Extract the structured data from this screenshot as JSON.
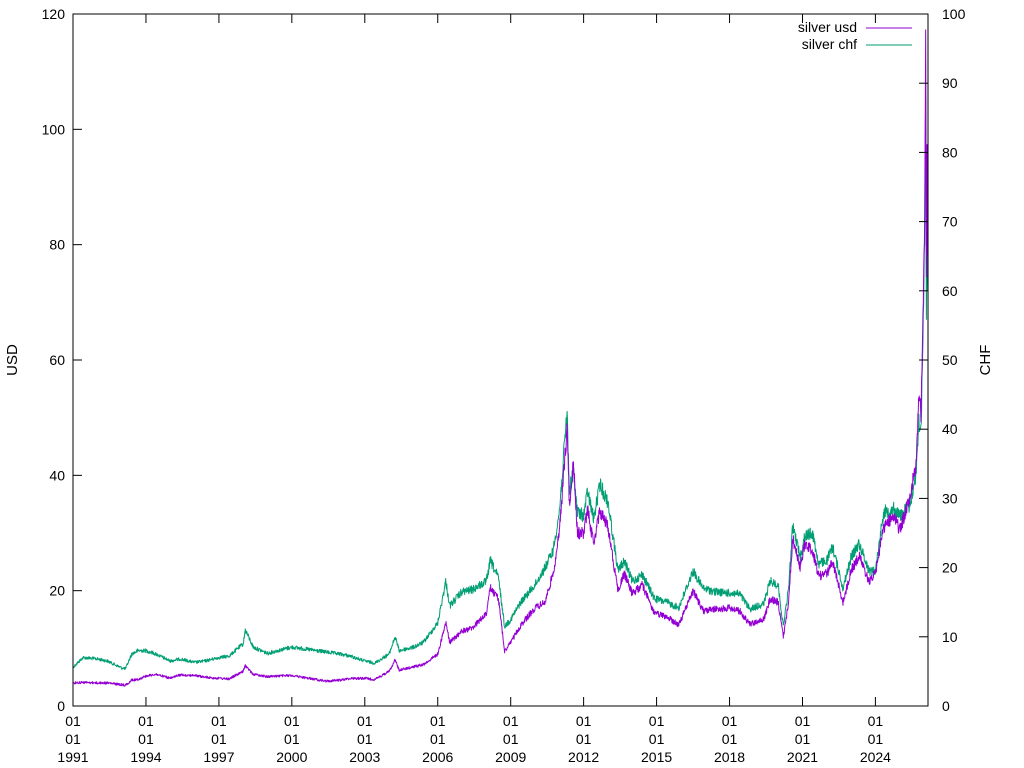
{
  "chart_data": {
    "type": "line",
    "title": "",
    "xlabel": "",
    "ylabel": "USD",
    "y2label": "CHF",
    "xlim": [
      "1991-01-01",
      "2026-03-01"
    ],
    "ylim": [
      0,
      120
    ],
    "y2lim": [
      0,
      100
    ],
    "grid": false,
    "legend_position": "top-right",
    "x_ticks": [
      {
        "value": "1991-01-01",
        "lines": [
          "01",
          "01",
          "1991"
        ]
      },
      {
        "value": "1994-01-01",
        "lines": [
          "01",
          "01",
          "1994"
        ]
      },
      {
        "value": "1997-01-01",
        "lines": [
          "01",
          "01",
          "1997"
        ]
      },
      {
        "value": "2000-01-01",
        "lines": [
          "01",
          "01",
          "2000"
        ]
      },
      {
        "value": "2003-01-01",
        "lines": [
          "01",
          "01",
          "2003"
        ]
      },
      {
        "value": "2006-01-01",
        "lines": [
          "01",
          "01",
          "2006"
        ]
      },
      {
        "value": "2009-01-01",
        "lines": [
          "01",
          "01",
          "2009"
        ]
      },
      {
        "value": "2012-01-01",
        "lines": [
          "01",
          "01",
          "2012"
        ]
      },
      {
        "value": "2015-01-01",
        "lines": [
          "01",
          "01",
          "2015"
        ]
      },
      {
        "value": "2018-01-01",
        "lines": [
          "01",
          "01",
          "2018"
        ]
      },
      {
        "value": "2021-01-01",
        "lines": [
          "01",
          "01",
          "2021"
        ]
      },
      {
        "value": "2024-01-01",
        "lines": [
          "01",
          "01",
          "2024"
        ]
      }
    ],
    "y_ticks": [
      "0",
      "20",
      "40",
      "60",
      "80",
      "100",
      "120"
    ],
    "y2_ticks": [
      "0",
      "10",
      "20",
      "30",
      "40",
      "50",
      "60",
      "70",
      "80",
      "90",
      "100"
    ],
    "series": [
      {
        "name": "silver usd",
        "axis": "y",
        "color": "#9400d3",
        "points": [
          [
            "1991-01-01",
            4.0
          ],
          [
            "1991-06-01",
            4.1
          ],
          [
            "1992-01-01",
            4.0
          ],
          [
            "1992-06-01",
            4.0
          ],
          [
            "1993-01-01",
            3.7
          ],
          [
            "1993-03-01",
            3.6
          ],
          [
            "1993-06-01",
            4.5
          ],
          [
            "1993-09-01",
            4.6
          ],
          [
            "1994-01-01",
            5.2
          ],
          [
            "1994-06-01",
            5.5
          ],
          [
            "1995-01-01",
            4.8
          ],
          [
            "1995-06-01",
            5.4
          ],
          [
            "1996-01-01",
            5.3
          ],
          [
            "1996-06-01",
            5.0
          ],
          [
            "1997-01-01",
            4.8
          ],
          [
            "1997-06-01",
            4.7
          ],
          [
            "1998-01-01",
            6.0
          ],
          [
            "1998-02-01",
            7.0
          ],
          [
            "1998-06-01",
            5.5
          ],
          [
            "1999-01-01",
            5.1
          ],
          [
            "1999-06-01",
            5.2
          ],
          [
            "2000-01-01",
            5.3
          ],
          [
            "2000-06-01",
            5.0
          ],
          [
            "2001-01-01",
            4.6
          ],
          [
            "2001-06-01",
            4.3
          ],
          [
            "2002-01-01",
            4.5
          ],
          [
            "2002-06-01",
            4.8
          ],
          [
            "2003-01-01",
            4.8
          ],
          [
            "2003-06-01",
            4.6
          ],
          [
            "2004-01-01",
            6.0
          ],
          [
            "2004-04-01",
            8.0
          ],
          [
            "2004-06-01",
            6.2
          ],
          [
            "2005-01-01",
            6.8
          ],
          [
            "2005-06-01",
            7.2
          ],
          [
            "2006-01-01",
            9.0
          ],
          [
            "2006-05-01",
            14.5
          ],
          [
            "2006-07-01",
            11.0
          ],
          [
            "2007-01-01",
            13.0
          ],
          [
            "2007-06-01",
            13.5
          ],
          [
            "2008-01-01",
            16.0
          ],
          [
            "2008-03-01",
            20.5
          ],
          [
            "2008-07-01",
            18.5
          ],
          [
            "2008-10-01",
            9.5
          ],
          [
            "2009-01-01",
            11.0
          ],
          [
            "2009-06-01",
            14.0
          ],
          [
            "2010-01-01",
            17.0
          ],
          [
            "2010-06-01",
            18.0
          ],
          [
            "2010-10-01",
            23.0
          ],
          [
            "2011-01-01",
            30.0
          ],
          [
            "2011-04-28",
            48.0
          ],
          [
            "2011-06-01",
            35.0
          ],
          [
            "2011-08-01",
            42.0
          ],
          [
            "2011-10-01",
            30.0
          ],
          [
            "2012-01-01",
            30.0
          ],
          [
            "2012-03-01",
            34.0
          ],
          [
            "2012-06-01",
            28.0
          ],
          [
            "2012-09-01",
            34.0
          ],
          [
            "2013-01-01",
            31.0
          ],
          [
            "2013-06-01",
            20.0
          ],
          [
            "2013-09-01",
            23.0
          ],
          [
            "2014-01-01",
            19.5
          ],
          [
            "2014-06-01",
            21.0
          ],
          [
            "2014-12-01",
            16.0
          ],
          [
            "2015-06-01",
            15.5
          ],
          [
            "2015-12-01",
            14.0
          ],
          [
            "2016-07-01",
            20.0
          ],
          [
            "2016-12-01",
            16.5
          ],
          [
            "2017-06-01",
            16.8
          ],
          [
            "2018-01-01",
            17.0
          ],
          [
            "2018-06-01",
            16.5
          ],
          [
            "2018-11-01",
            14.2
          ],
          [
            "2019-06-01",
            15.0
          ],
          [
            "2019-09-01",
            18.5
          ],
          [
            "2020-01-01",
            18.0
          ],
          [
            "2020-03-18",
            12.0
          ],
          [
            "2020-06-01",
            17.5
          ],
          [
            "2020-08-07",
            29.0
          ],
          [
            "2020-12-01",
            24.0
          ],
          [
            "2021-02-01",
            28.0
          ],
          [
            "2021-06-01",
            27.0
          ],
          [
            "2021-09-01",
            22.5
          ],
          [
            "2022-01-01",
            23.0
          ],
          [
            "2022-04-01",
            25.0
          ],
          [
            "2022-09-01",
            18.0
          ],
          [
            "2023-01-01",
            23.5
          ],
          [
            "2023-05-01",
            26.0
          ],
          [
            "2023-10-01",
            21.5
          ],
          [
            "2024-01-01",
            23.0
          ],
          [
            "2024-05-01",
            31.0
          ],
          [
            "2024-10-01",
            33.0
          ],
          [
            "2025-01-01",
            30.5
          ],
          [
            "2025-06-01",
            36.0
          ],
          [
            "2025-09-01",
            42.0
          ],
          [
            "2025-10-15",
            53.0
          ],
          [
            "2025-11-15",
            51.0
          ],
          [
            "2025-12-15",
            66.0
          ],
          [
            "2026-01-10",
            85.0
          ],
          [
            "2026-01-25",
            118.0
          ],
          [
            "2026-02-05",
            75.0
          ],
          [
            "2026-02-15",
            95.0
          ],
          [
            "2026-02-25",
            78.0
          ]
        ]
      },
      {
        "name": "silver chf",
        "axis": "y2",
        "color": "#009e73",
        "points": [
          [
            "1991-01-01",
            5.6
          ],
          [
            "1991-06-01",
            7.0
          ],
          [
            "1992-01-01",
            6.8
          ],
          [
            "1992-06-01",
            6.5
          ],
          [
            "1993-01-01",
            5.5
          ],
          [
            "1993-03-01",
            5.4
          ],
          [
            "1993-06-01",
            7.5
          ],
          [
            "1993-09-01",
            8.0
          ],
          [
            "1994-01-01",
            8.0
          ],
          [
            "1994-06-01",
            7.5
          ],
          [
            "1995-01-01",
            6.5
          ],
          [
            "1995-06-01",
            6.8
          ],
          [
            "1996-01-01",
            6.3
          ],
          [
            "1996-06-01",
            6.5
          ],
          [
            "1997-01-01",
            7.0
          ],
          [
            "1997-06-01",
            7.2
          ],
          [
            "1998-01-01",
            9.0
          ],
          [
            "1998-02-01",
            11.0
          ],
          [
            "1998-06-01",
            8.5
          ],
          [
            "1999-01-01",
            7.6
          ],
          [
            "1999-06-01",
            8.0
          ],
          [
            "2000-01-01",
            8.5
          ],
          [
            "2000-06-01",
            8.3
          ],
          [
            "2001-01-01",
            8.0
          ],
          [
            "2001-06-01",
            7.8
          ],
          [
            "2002-01-01",
            7.5
          ],
          [
            "2002-06-01",
            7.2
          ],
          [
            "2003-01-01",
            6.5
          ],
          [
            "2003-06-01",
            6.2
          ],
          [
            "2004-01-01",
            7.5
          ],
          [
            "2004-04-01",
            10.0
          ],
          [
            "2004-06-01",
            8.0
          ],
          [
            "2005-01-01",
            8.5
          ],
          [
            "2005-06-01",
            9.2
          ],
          [
            "2006-01-01",
            12.0
          ],
          [
            "2006-05-01",
            18.0
          ],
          [
            "2006-07-01",
            14.5
          ],
          [
            "2007-01-01",
            16.5
          ],
          [
            "2007-06-01",
            16.8
          ],
          [
            "2008-01-01",
            18.0
          ],
          [
            "2008-03-01",
            21.0
          ],
          [
            "2008-07-01",
            18.5
          ],
          [
            "2008-10-01",
            11.5
          ],
          [
            "2009-01-01",
            12.5
          ],
          [
            "2009-06-01",
            15.0
          ],
          [
            "2010-01-01",
            17.5
          ],
          [
            "2010-06-01",
            20.0
          ],
          [
            "2010-10-01",
            22.5
          ],
          [
            "2011-01-01",
            28.0
          ],
          [
            "2011-04-28",
            42.5
          ],
          [
            "2011-06-01",
            31.0
          ],
          [
            "2011-08-01",
            34.0
          ],
          [
            "2011-10-01",
            28.0
          ],
          [
            "2012-01-01",
            27.5
          ],
          [
            "2012-03-01",
            31.0
          ],
          [
            "2012-06-01",
            27.0
          ],
          [
            "2012-09-01",
            32.0
          ],
          [
            "2013-01-01",
            29.5
          ],
          [
            "2013-06-01",
            19.5
          ],
          [
            "2013-09-01",
            21.0
          ],
          [
            "2014-01-01",
            18.0
          ],
          [
            "2014-06-01",
            19.0
          ],
          [
            "2014-12-01",
            15.5
          ],
          [
            "2015-06-01",
            15.0
          ],
          [
            "2015-12-01",
            14.2
          ],
          [
            "2016-07-01",
            19.5
          ],
          [
            "2016-12-01",
            17.0
          ],
          [
            "2017-06-01",
            16.5
          ],
          [
            "2018-01-01",
            16.3
          ],
          [
            "2018-06-01",
            16.2
          ],
          [
            "2018-11-01",
            14.0
          ],
          [
            "2019-06-01",
            14.8
          ],
          [
            "2019-09-01",
            18.0
          ],
          [
            "2020-01-01",
            17.5
          ],
          [
            "2020-03-18",
            11.5
          ],
          [
            "2020-06-01",
            16.5
          ],
          [
            "2020-08-07",
            26.0
          ],
          [
            "2020-12-01",
            21.5
          ],
          [
            "2021-02-01",
            24.5
          ],
          [
            "2021-06-01",
            25.0
          ],
          [
            "2021-09-01",
            20.5
          ],
          [
            "2022-01-01",
            21.0
          ],
          [
            "2022-04-01",
            23.0
          ],
          [
            "2022-09-01",
            17.0
          ],
          [
            "2023-01-01",
            21.5
          ],
          [
            "2023-05-01",
            23.5
          ],
          [
            "2023-10-01",
            19.5
          ],
          [
            "2024-01-01",
            19.5
          ],
          [
            "2024-05-01",
            28.0
          ],
          [
            "2024-10-01",
            28.5
          ],
          [
            "2025-01-01",
            27.5
          ],
          [
            "2025-06-01",
            29.0
          ],
          [
            "2025-09-01",
            33.5
          ],
          [
            "2025-10-15",
            41.0
          ],
          [
            "2025-11-15",
            40.0
          ],
          [
            "2025-12-15",
            52.0
          ],
          [
            "2026-01-10",
            68.0
          ],
          [
            "2026-01-25",
            91.0
          ],
          [
            "2026-02-05",
            55.0
          ],
          [
            "2026-02-15",
            73.0
          ],
          [
            "2026-02-25",
            60.0
          ]
        ]
      }
    ]
  }
}
